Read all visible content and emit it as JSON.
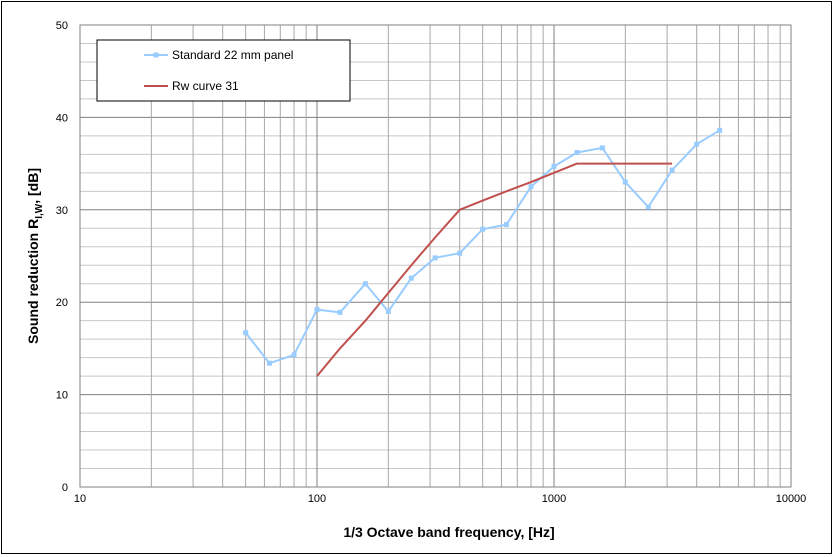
{
  "chart_data": {
    "type": "line",
    "x_scale": "log",
    "xlim": [
      10,
      10000
    ],
    "ylim": [
      0,
      50
    ],
    "x_ticks": [
      "10",
      "100",
      "1000",
      "10000"
    ],
    "y_ticks": [
      "0",
      "10",
      "20",
      "30",
      "40",
      "50"
    ],
    "xlabel": "1/3 Octave band frequency,  [Hz]",
    "ylabel_main": "Sound reduction R",
    "ylabel_sub": "I,W",
    "ylabel_unit": ",  [dB]",
    "grid": true,
    "legend_position": "top-left",
    "series": [
      {
        "name": "Standard 22 mm panel",
        "color": "#99CCFF",
        "marker": "square",
        "x": [
          50,
          63,
          80,
          100,
          125,
          160,
          200,
          250,
          315,
          400,
          500,
          630,
          800,
          1000,
          1250,
          1600,
          2000,
          2500,
          3150,
          4000,
          5000
        ],
        "y": [
          16.7,
          13.4,
          14.3,
          19.2,
          18.9,
          22.0,
          19.0,
          22.6,
          24.8,
          25.3,
          27.9,
          28.4,
          32.5,
          34.7,
          36.2,
          36.7,
          33.0,
          30.3,
          34.3,
          37.1,
          38.6
        ]
      },
      {
        "name": "Rw curve 31",
        "color": "#C0504D",
        "marker": "none",
        "x": [
          100,
          125,
          160,
          200,
          250,
          315,
          400,
          500,
          630,
          800,
          1000,
          1250,
          1600,
          2000,
          2500,
          3150
        ],
        "y": [
          12,
          15,
          18,
          21,
          24,
          27,
          30,
          31,
          32,
          33,
          34,
          35,
          35,
          35,
          35,
          35
        ]
      }
    ]
  }
}
